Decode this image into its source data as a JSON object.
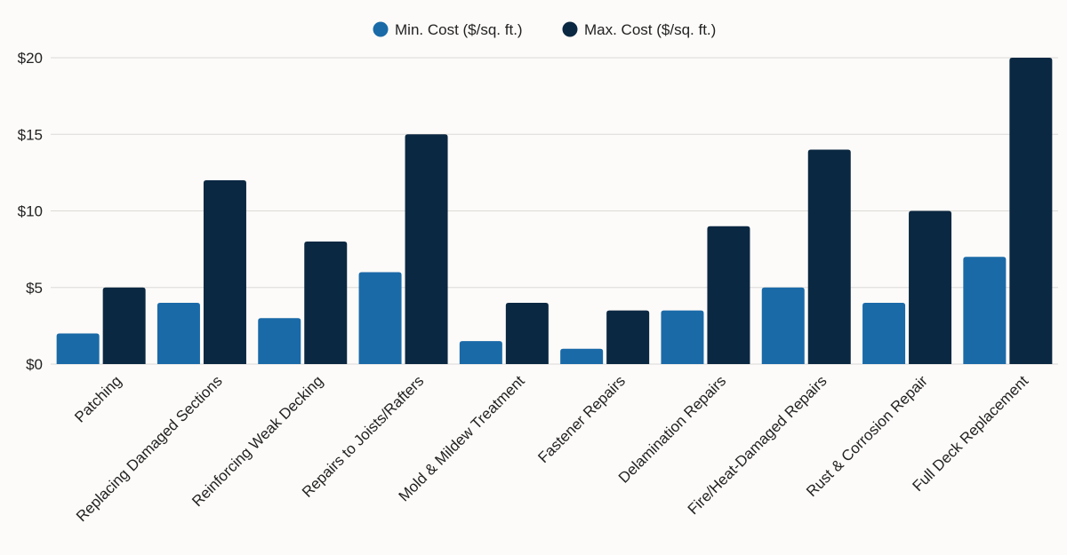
{
  "chart_data": {
    "type": "bar",
    "title": "",
    "xlabel": "",
    "ylabel": "",
    "ylim": [
      0,
      20
    ],
    "yticks": [
      0,
      5,
      10,
      15,
      20
    ],
    "ytick_labels": [
      "$0",
      "$5",
      "$10",
      "$15",
      "$20"
    ],
    "grid": true,
    "legend_position": "top-center",
    "categories": [
      "Patching",
      "Replacing Damaged Sections",
      "Reinforcing Weak Decking",
      "Repairs to Joists/Rafters",
      "Mold & Mildew Treatment",
      "Fastener Repairs",
      "Delamination Repairs",
      "Fire/Heat-Damaged Repairs",
      "Rust & Corrosion Repair",
      "Full Deck Replacement"
    ],
    "series": [
      {
        "name": "Min. Cost ($/sq. ft.)",
        "color": "#1a6aa8",
        "values": [
          2,
          4,
          3,
          6,
          1.5,
          1,
          3.5,
          5,
          4,
          7
        ]
      },
      {
        "name": "Max. Cost ($/sq. ft.)",
        "color": "#0b2842",
        "values": [
          5,
          12,
          8,
          15,
          4,
          3.5,
          9,
          14,
          10,
          20
        ]
      }
    ]
  }
}
